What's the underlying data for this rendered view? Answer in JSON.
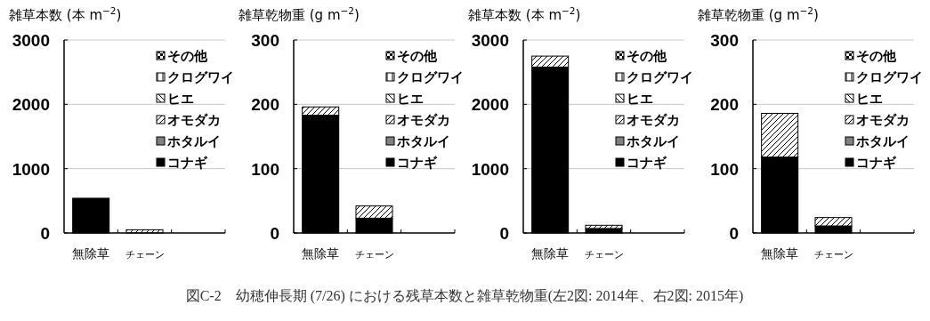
{
  "chart_data": [
    {
      "type": "bar",
      "stacked": true,
      "title": "雑草本数 (本 m$^{−2}$)",
      "categories": [
        "無除草",
        "チェーン",
        null
      ],
      "ylim": [
        0,
        3000
      ],
      "yticks": [
        0,
        1000,
        2000,
        3000
      ],
      "grid": "y",
      "legend": "top right",
      "annotations": [
        "図C-2　幼穂伸長期 (7/26) における残草本数と雑草乾物重(左2図: 2014年、右2図: 2015年)"
      ],
      "series": [
        {
          "name": "コナギ",
          "color": "#000000",
          "values": [
            540,
            0,
            null
          ]
        },
        {
          "name": "ホタルイ",
          "color": "#808080",
          "values": [
            0,
            0,
            null
          ]
        },
        {
          "name": "オモダカ",
          "color": "#000000",
          "values": [
            0,
            50,
            null
          ]
        },
        {
          "name": "ヒエ",
          "color": "#000000",
          "values": [
            0,
            0,
            null
          ]
        },
        {
          "name": "クログワイ",
          "color": "#000000",
          "values": [
            0,
            0,
            null
          ]
        },
        {
          "name": "その他",
          "color": "#000000",
          "values": [
            0,
            0,
            null
          ]
        }
      ]
    },
    {
      "type": "bar",
      "stacked": true,
      "title": "雑草乾物重 (g m$^{−2}$)",
      "categories": [
        "無除草",
        "チェーン",
        null
      ],
      "ylim": [
        0,
        300
      ],
      "yticks": [
        0,
        100,
        200,
        300
      ],
      "grid": "y",
      "legend": "top right",
      "series": [
        {
          "name": "コナギ",
          "color": "#000000",
          "values": [
            183,
            23,
            null
          ]
        },
        {
          "name": "ホタルイ",
          "color": "#808080",
          "values": [
            0,
            0,
            null
          ]
        },
        {
          "name": "オモダカ",
          "color": "#000000",
          "values": [
            13,
            19,
            null
          ]
        },
        {
          "name": "ヒエ",
          "color": "#000000",
          "values": [
            0,
            0,
            null
          ]
        },
        {
          "name": "クログワイ",
          "color": "#000000",
          "values": [
            0,
            0,
            null
          ]
        },
        {
          "name": "その他",
          "color": "#000000",
          "values": [
            0,
            0,
            null
          ]
        }
      ]
    },
    {
      "type": "bar",
      "stacked": true,
      "title": "雑草本数 (本 m$^{−2}$)",
      "categories": [
        "無除草",
        "チェーン",
        null
      ],
      "ylim": [
        0,
        3000
      ],
      "yticks": [
        0,
        1000,
        2000,
        3000
      ],
      "grid": "y",
      "legend": "top right",
      "series": [
        {
          "name": "コナギ",
          "color": "#000000",
          "values": [
            2580,
            70,
            null
          ]
        },
        {
          "name": "ホタルイ",
          "color": "#808080",
          "values": [
            0,
            0,
            null
          ]
        },
        {
          "name": "オモダカ",
          "color": "#000000",
          "values": [
            170,
            50,
            null
          ]
        },
        {
          "name": "ヒエ",
          "color": "#000000",
          "values": [
            0,
            0,
            null
          ]
        },
        {
          "name": "クログワイ",
          "color": "#000000",
          "values": [
            0,
            0,
            null
          ]
        },
        {
          "name": "その他",
          "color": "#000000",
          "values": [
            0,
            0,
            null
          ]
        }
      ]
    },
    {
      "type": "bar",
      "stacked": true,
      "title": "雑草乾物重 (g m$^{−2}$)",
      "categories": [
        "無除草",
        "チェーン",
        null
      ],
      "ylim": [
        0,
        300
      ],
      "yticks": [
        0,
        100,
        200,
        300
      ],
      "grid": "y",
      "legend": "top right",
      "series": [
        {
          "name": "コナギ",
          "color": "#000000",
          "values": [
            118,
            11,
            null
          ]
        },
        {
          "name": "ホタルイ",
          "color": "#808080",
          "values": [
            0,
            0,
            null
          ]
        },
        {
          "name": "オモダカ",
          "color": "#000000",
          "values": [
            68,
            13,
            null
          ]
        },
        {
          "name": "ヒエ",
          "color": "#000000",
          "values": [
            0,
            0,
            null
          ]
        },
        {
          "name": "クログワイ",
          "color": "#000000",
          "values": [
            0,
            0,
            null
          ]
        },
        {
          "name": "その他",
          "color": "#000000",
          "values": [
            0,
            0,
            null
          ]
        }
      ]
    }
  ]
}
